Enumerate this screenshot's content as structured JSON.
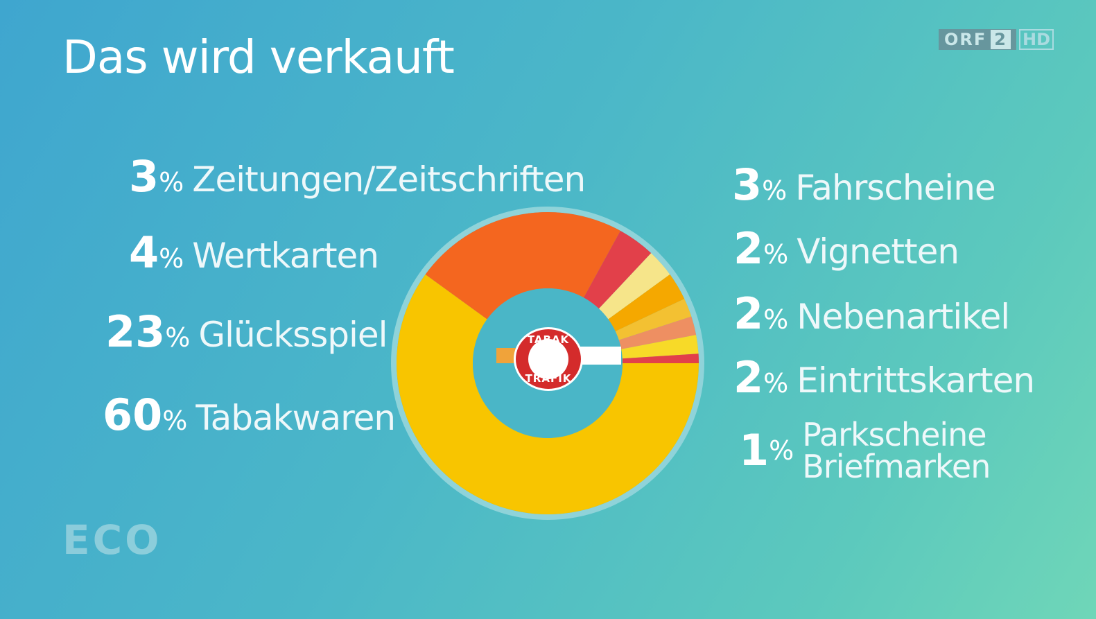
{
  "title": "Das wird verkauft",
  "channel_logo": {
    "orf": "ORF",
    "number": "2",
    "hd": "HD"
  },
  "show_logo": "ECO",
  "badge": {
    "top": "TABAK",
    "bottom": "TRAFIK"
  },
  "percent_sign": "%",
  "colors": {
    "Tabakwaren": "#f8c500",
    "Glücksspiel": "#f4661f",
    "Wertkarten": "#e2404a",
    "Zeitungen/Zeitschriften": "#f6e58a",
    "Fahrscheine": "#f5a800",
    "Vignetten": "#f3c132",
    "Nebenartikel": "#ee8f62",
    "Eintrittskarten": "#f7da28",
    "Parkscheine Briefmarken": "#e2404a",
    "center": "#4ab6c7",
    "outline": "#8fd3d9"
  },
  "chart_data": {
    "type": "pie",
    "variant": "donut",
    "title": "Das wird verkauft",
    "unit": "%",
    "slices": [
      {
        "name": "Tabakwaren",
        "value": 60
      },
      {
        "name": "Glücksspiel",
        "value": 23
      },
      {
        "name": "Wertkarten",
        "value": 4
      },
      {
        "name": "Zeitungen/Zeitschriften",
        "value": 3
      },
      {
        "name": "Fahrscheine",
        "value": 3
      },
      {
        "name": "Vignetten",
        "value": 2
      },
      {
        "name": "Nebenartikel",
        "value": 2
      },
      {
        "name": "Eintrittskarten",
        "value": 2
      },
      {
        "name": "Parkscheine Briefmarken",
        "value": 1
      }
    ]
  },
  "labels": {
    "left": [
      {
        "value": "3",
        "text": "Zeitungen/Zeitschriften"
      },
      {
        "value": "4",
        "text": "Wertkarten"
      },
      {
        "value": "23",
        "text": "Glücksspiel"
      },
      {
        "value": "60",
        "text": "Tabakwaren"
      }
    ],
    "right": [
      {
        "value": "3",
        "text": "Fahrscheine"
      },
      {
        "value": "2",
        "text": "Vignetten"
      },
      {
        "value": "2",
        "text": "Nebenartikel"
      },
      {
        "value": "2",
        "text": "Eintrittskarten"
      },
      {
        "value": "1",
        "line1": "Parkscheine",
        "line2": "Briefmarken"
      }
    ]
  }
}
